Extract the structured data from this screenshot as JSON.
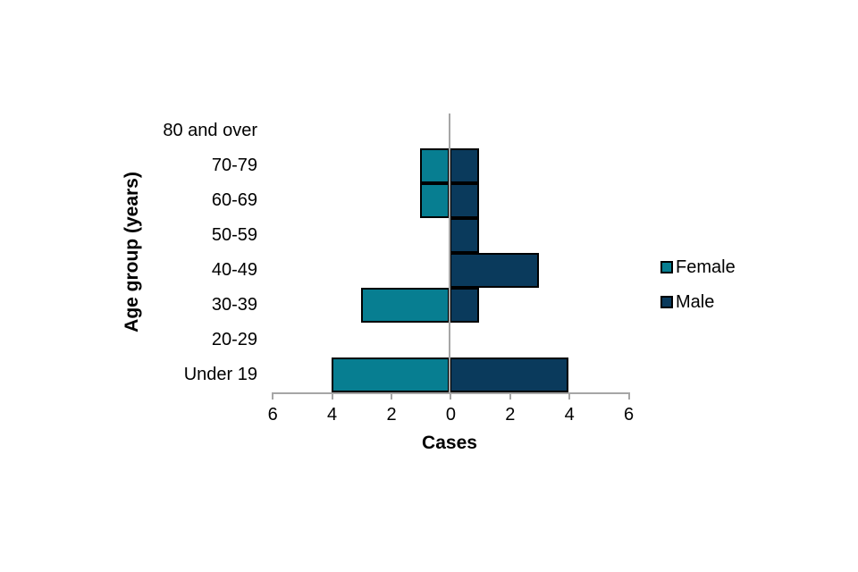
{
  "chart_data": {
    "type": "bar",
    "variant": "population-pyramid",
    "orientation": "horizontal",
    "title": "",
    "xlabel": "Cases",
    "ylabel": "Age group (years)",
    "categories": [
      "80 and over",
      "70-79",
      "60-69",
      "50-59",
      "40-49",
      "30-39",
      "20-29",
      "Under 19"
    ],
    "series": [
      {
        "name": "Female",
        "side": "left",
        "color": "#077e91",
        "values": [
          0,
          1,
          1,
          0,
          0,
          3,
          0,
          4
        ]
      },
      {
        "name": "Male",
        "side": "right",
        "color": "#0a3a5c",
        "values": [
          0,
          1,
          1,
          1,
          3,
          1,
          0,
          4
        ]
      }
    ],
    "x_tick_labels": [
      6,
      4,
      2,
      0,
      2,
      4,
      6
    ],
    "xlim": [
      -6,
      6
    ],
    "grid": false,
    "legend_position": "right"
  },
  "colors": {
    "axis": "#a6a6a6",
    "bar_border": "#000000",
    "background": "#ffffff"
  }
}
